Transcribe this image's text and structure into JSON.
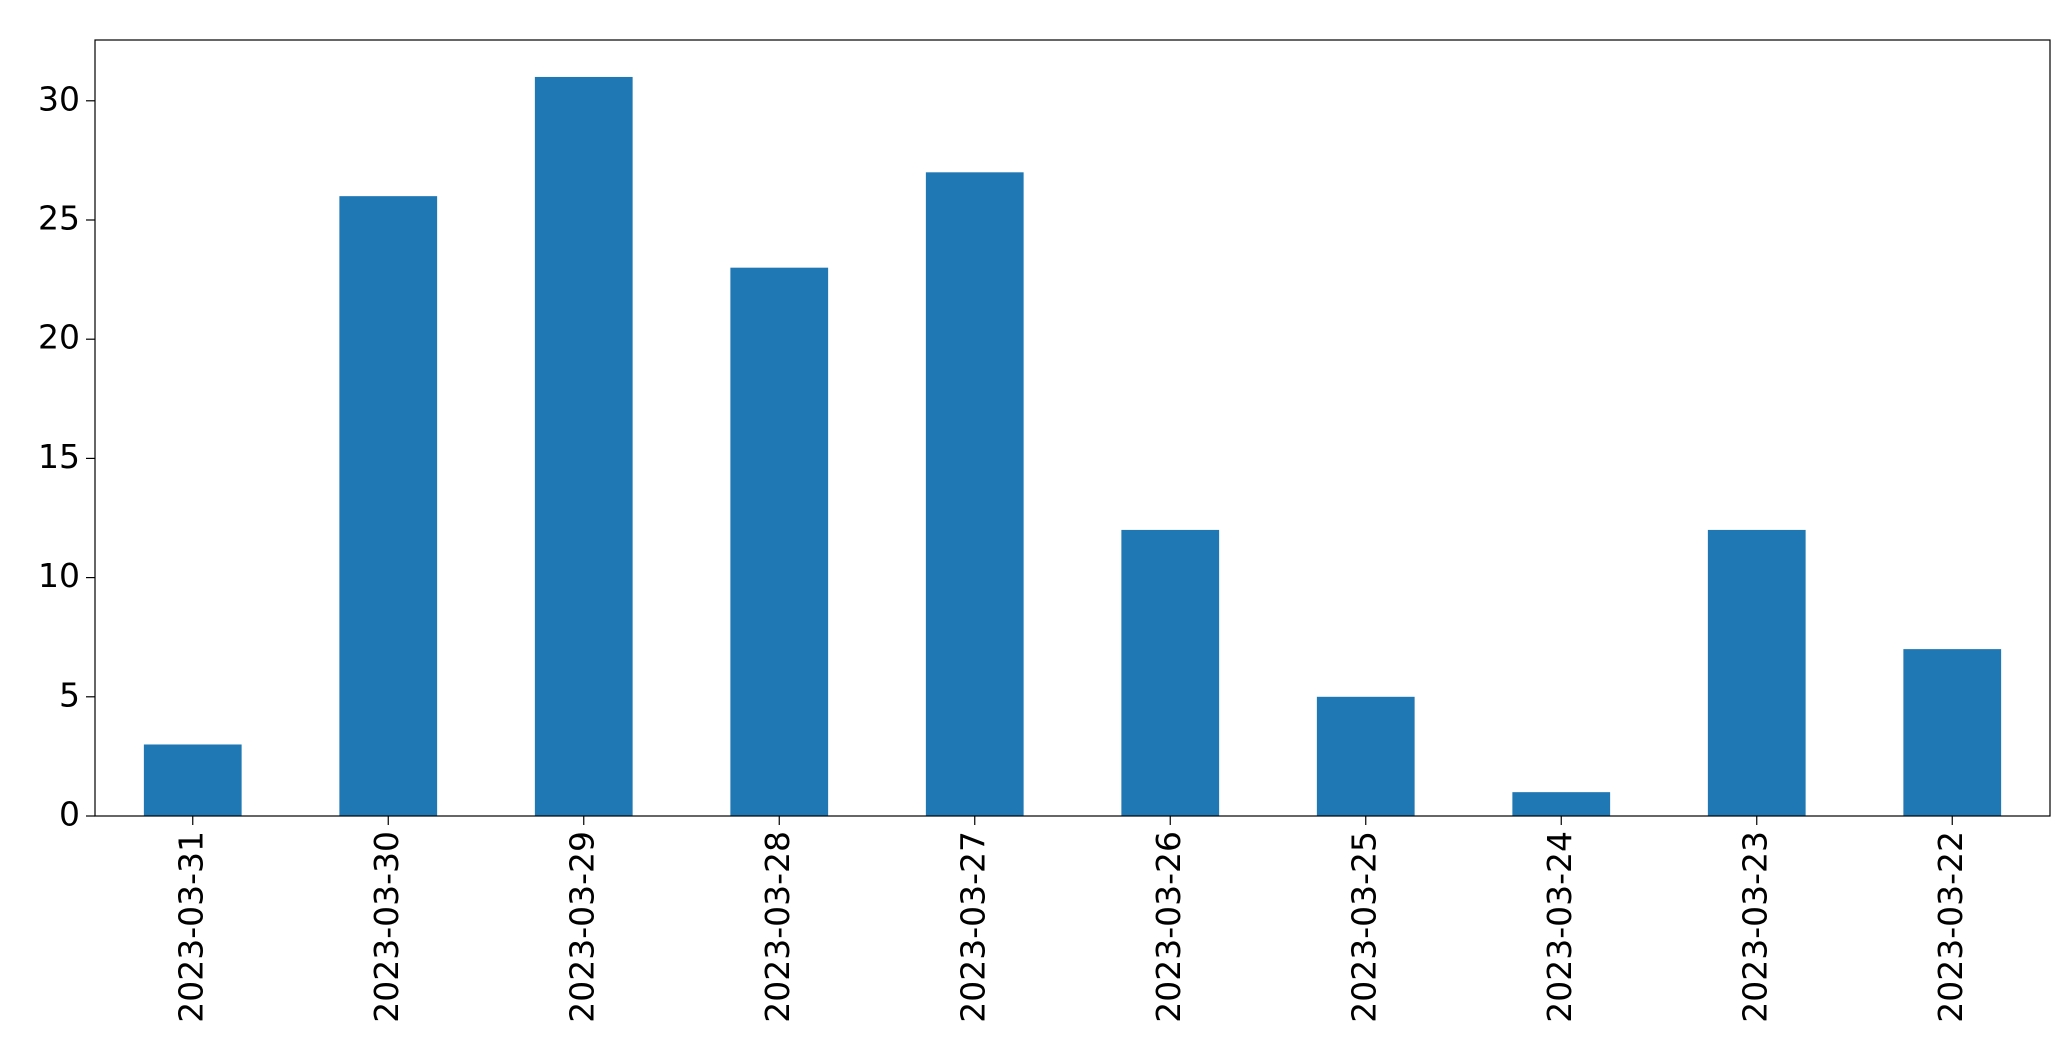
{
  "chart_data": {
    "type": "bar",
    "categories": [
      "2023-03-31",
      "2023-03-30",
      "2023-03-29",
      "2023-03-28",
      "2023-03-27",
      "2023-03-26",
      "2023-03-25",
      "2023-03-24",
      "2023-03-23",
      "2023-03-22"
    ],
    "values": [
      3,
      26,
      31,
      23,
      27,
      12,
      5,
      1,
      12,
      7
    ],
    "color": "#1f77b4",
    "ylim": [
      0,
      32.55
    ],
    "yticks": [
      0,
      5,
      10,
      15,
      20,
      25,
      30
    ],
    "grid": false
  }
}
